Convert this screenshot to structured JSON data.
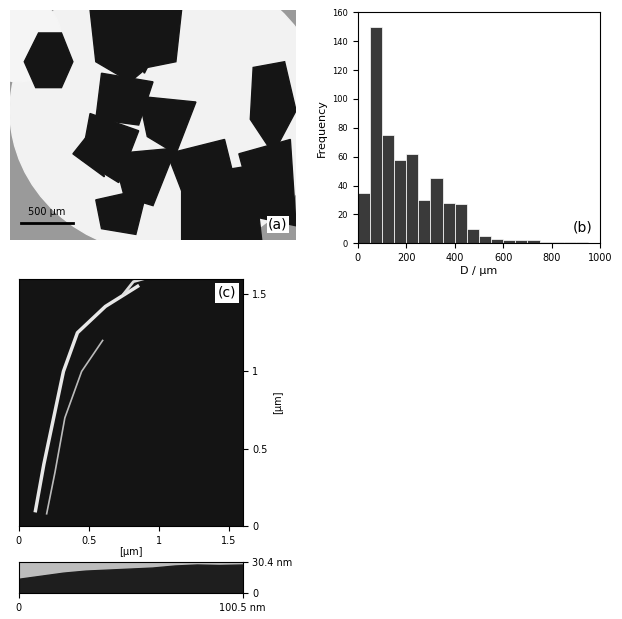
{
  "chart_data": [
    {
      "type": "histogram",
      "panel_label": "(b)",
      "x_label": "D / μm",
      "y_label": "Frequency",
      "bins": [
        0,
        50,
        100,
        150,
        200,
        250,
        300,
        350,
        400,
        450,
        500,
        550,
        600,
        650,
        700,
        750,
        800,
        850,
        900,
        950,
        1000
      ],
      "counts": [
        35,
        150,
        75,
        58,
        62,
        30,
        45,
        28,
        27,
        10,
        5,
        3,
        2,
        2,
        2,
        1,
        1,
        1,
        1,
        0
      ],
      "xlim": [
        0,
        1000
      ],
      "ylim": [
        0,
        160
      ],
      "xticks": [
        0,
        200,
        400,
        600,
        800,
        1000
      ],
      "yticks": [
        0,
        20,
        40,
        60,
        80,
        100,
        120,
        140,
        160
      ],
      "color": "#3a3a3a"
    },
    {
      "type": "area",
      "x": [
        0,
        10,
        20,
        30,
        40,
        50,
        60,
        70,
        80,
        90,
        100.5
      ],
      "values": [
        14,
        17,
        20,
        22,
        23,
        24,
        25,
        27,
        28,
        27.5,
        28
      ],
      "xlim": [
        0,
        100.5
      ],
      "ylim": [
        0,
        30.4
      ],
      "xticks": [
        0,
        {
          "value": 100.5,
          "label": "100.5 nm"
        }
      ],
      "yticks": [
        0,
        {
          "value": 30.4,
          "label": "30.4 nm"
        }
      ],
      "color": "#1e1e1e"
    }
  ],
  "micrograph": {
    "panel_label": "(a)",
    "scale_bar": "500 μm"
  },
  "afm_image": {
    "panel_label": "(c)",
    "x_label": "[μm]",
    "y_label": "[μm]",
    "xlim": [
      0,
      1.6
    ],
    "ylim": [
      0,
      1.6
    ],
    "xticks": [
      0,
      0.5,
      1,
      1.5
    ],
    "yticks": [
      0,
      0.5,
      1,
      1.5
    ]
  }
}
